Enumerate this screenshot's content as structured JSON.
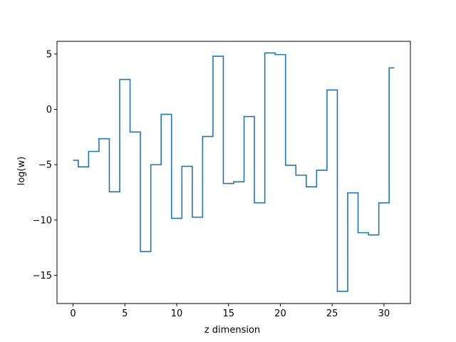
{
  "chart_data": {
    "type": "line",
    "drawstyle": "steps-mid",
    "title": "",
    "xlabel": "z dimension",
    "ylabel": "log(w)",
    "xlim": [
      -1.55,
      32.55
    ],
    "ylim": [
      -17.55,
      6.15
    ],
    "xticks": [
      0,
      5,
      10,
      15,
      20,
      25,
      30
    ],
    "yticks": [
      -15,
      -10,
      -5,
      0,
      5
    ],
    "xtick_labels": [
      "0",
      "5",
      "10",
      "15",
      "20",
      "25",
      "30"
    ],
    "ytick_labels": [
      "−15",
      "−10",
      "−5",
      "0",
      "5"
    ],
    "grid": false,
    "series": [
      {
        "color": "#1f77b4",
        "x": [
          0,
          1,
          2,
          3,
          4,
          5,
          6,
          7,
          8,
          9,
          10,
          11,
          12,
          13,
          14,
          15,
          16,
          17,
          18,
          19,
          20,
          21,
          22,
          23,
          24,
          25,
          26,
          27,
          28,
          29,
          30,
          31
        ],
        "y": [
          -4.6,
          -5.2,
          -3.8,
          -2.65,
          -7.45,
          2.7,
          -2.05,
          -12.85,
          -5.0,
          -0.45,
          -9.85,
          -5.15,
          -9.75,
          -2.45,
          4.8,
          -6.7,
          -6.55,
          -0.65,
          -8.45,
          5.1,
          4.95,
          -5.05,
          -5.95,
          -7.0,
          -5.5,
          1.75,
          -16.45,
          -7.55,
          -11.15,
          -11.35,
          -8.45,
          3.75
        ]
      }
    ]
  }
}
